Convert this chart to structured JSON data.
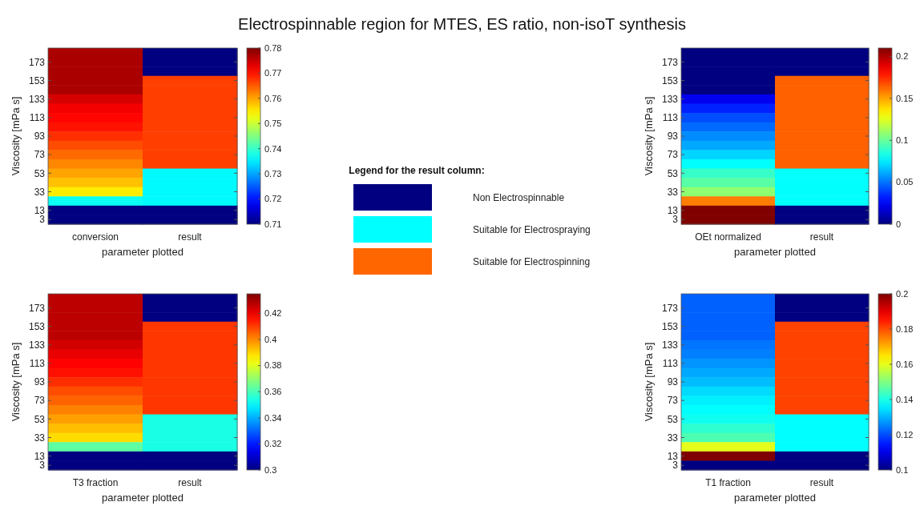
{
  "chart_data": [
    {
      "type": "heatmap",
      "title": "Electrospinnable region for MTES, ES ratio, non-isoT synthesis",
      "xlabel": "parameter plotted",
      "ylabel": "Viscosity [mPa s]",
      "categories": [
        "conversion",
        "result"
      ],
      "y_categories": [
        null,
        "173",
        null,
        "153",
        null,
        "133",
        null,
        "113",
        null,
        "93",
        null,
        "73",
        null,
        "53",
        null,
        "33",
        null,
        "13",
        "3"
      ],
      "cells": [
        [
          0.777,
          0.71
        ],
        [
          0.777,
          0.71
        ],
        [
          0.777,
          0.71
        ],
        [
          0.777,
          0.767
        ],
        [
          0.777,
          0.767
        ],
        [
          0.774,
          0.767
        ],
        [
          0.772,
          0.767
        ],
        [
          0.771,
          0.767
        ],
        [
          0.77,
          0.767
        ],
        [
          0.768,
          0.767
        ],
        [
          0.766,
          0.767
        ],
        [
          0.764,
          0.767
        ],
        [
          0.762,
          0.767
        ],
        [
          0.76,
          0.736
        ],
        [
          0.758,
          0.736
        ],
        [
          0.755,
          0.736
        ],
        [
          0.737,
          0.736
        ],
        [
          0.71,
          0.71
        ],
        [
          0.71,
          0.71
        ]
      ],
      "clim": [
        0.71,
        0.78
      ],
      "cticks": [
        0.71,
        0.72,
        0.73,
        0.74,
        0.75,
        0.76,
        0.77,
        0.78
      ]
    },
    {
      "type": "heatmap",
      "xlabel": "parameter plotted",
      "ylabel": "Viscosity [mPa s]",
      "categories": [
        "OEt normalized",
        "result"
      ],
      "y_categories": [
        null,
        "173",
        null,
        "153",
        null,
        "133",
        null,
        "113",
        null,
        "93",
        null,
        "73",
        null,
        "53",
        null,
        "33",
        null,
        "13",
        "3"
      ],
      "cells": [
        [
          0,
          0
        ],
        [
          0,
          0
        ],
        [
          0,
          0
        ],
        [
          0,
          0.164
        ],
        [
          0,
          0.164
        ],
        [
          0.023,
          0.164
        ],
        [
          0.033,
          0.164
        ],
        [
          0.042,
          0.164
        ],
        [
          0.048,
          0.164
        ],
        [
          0.055,
          0.164
        ],
        [
          0.061,
          0.164
        ],
        [
          0.07,
          0.164
        ],
        [
          0.079,
          0.164
        ],
        [
          0.09,
          0.079
        ],
        [
          0.097,
          0.079
        ],
        [
          0.108,
          0.079
        ],
        [
          0.158,
          0.079
        ],
        [
          0.21,
          0
        ],
        [
          0.21,
          0
        ]
      ],
      "clim": [
        0,
        0.21
      ],
      "cticks": [
        0,
        0.05,
        0.1,
        0.15,
        0.2
      ]
    },
    {
      "type": "other",
      "title": "Legend for the result column:",
      "categories": [
        "Non Electrospinnable",
        "Suitable for Electrospraying",
        "Suitable for Electrospinning"
      ],
      "colors": [
        "#000080",
        "#00ffff",
        "#ff6600"
      ]
    },
    {
      "type": "heatmap",
      "xlabel": "parameter plotted",
      "ylabel": "Viscosity [mPa s]",
      "categories": [
        "T3 fraction",
        "result"
      ],
      "y_categories": [
        null,
        "173",
        null,
        "153",
        null,
        "133",
        null,
        "113",
        null,
        "93",
        null,
        "73",
        null,
        "53",
        null,
        "33",
        null,
        "13",
        "3"
      ],
      "cells": [
        [
          0.427,
          0.3
        ],
        [
          0.427,
          0.3
        ],
        [
          0.427,
          0.3
        ],
        [
          0.427,
          0.411
        ],
        [
          0.427,
          0.411
        ],
        [
          0.424,
          0.411
        ],
        [
          0.421,
          0.411
        ],
        [
          0.418,
          0.411
        ],
        [
          0.416,
          0.411
        ],
        [
          0.412,
          0.411
        ],
        [
          0.408,
          0.411
        ],
        [
          0.405,
          0.411
        ],
        [
          0.401,
          0.411
        ],
        [
          0.397,
          0.354
        ],
        [
          0.393,
          0.354
        ],
        [
          0.389,
          0.354
        ],
        [
          0.363,
          0.354
        ],
        [
          0.3,
          0.3
        ],
        [
          0.3,
          0.3
        ]
      ],
      "clim": [
        0.3,
        0.435
      ],
      "cticks": [
        0.3,
        0.32,
        0.34,
        0.36,
        0.38,
        0.4,
        0.42
      ]
    },
    {
      "type": "heatmap",
      "xlabel": "parameter plotted",
      "ylabel": "Viscosity [mPa s]",
      "categories": [
        "T1 fraction",
        "result"
      ],
      "y_categories": [
        null,
        "173",
        null,
        "153",
        null,
        "133",
        null,
        "113",
        null,
        "93",
        null,
        "73",
        null,
        "53",
        null,
        "33",
        null,
        "13",
        "3"
      ],
      "cells": [
        [
          0.122,
          0.1
        ],
        [
          0.122,
          0.1
        ],
        [
          0.122,
          0.1
        ],
        [
          0.122,
          0.181
        ],
        [
          0.122,
          0.181
        ],
        [
          0.124,
          0.181
        ],
        [
          0.125,
          0.181
        ],
        [
          0.127,
          0.181
        ],
        [
          0.129,
          0.181
        ],
        [
          0.131,
          0.181
        ],
        [
          0.134,
          0.181
        ],
        [
          0.136,
          0.181
        ],
        [
          0.1375,
          0.181
        ],
        [
          0.139,
          0.1375
        ],
        [
          0.142,
          0.1375
        ],
        [
          0.145,
          0.1375
        ],
        [
          0.16,
          0.1375
        ],
        [
          0.2,
          0.1
        ],
        [
          0.1,
          0.1
        ]
      ],
      "clim": [
        0.1,
        0.2
      ],
      "cticks": [
        0.1,
        0.12,
        0.14,
        0.16,
        0.18,
        0.2
      ]
    }
  ]
}
